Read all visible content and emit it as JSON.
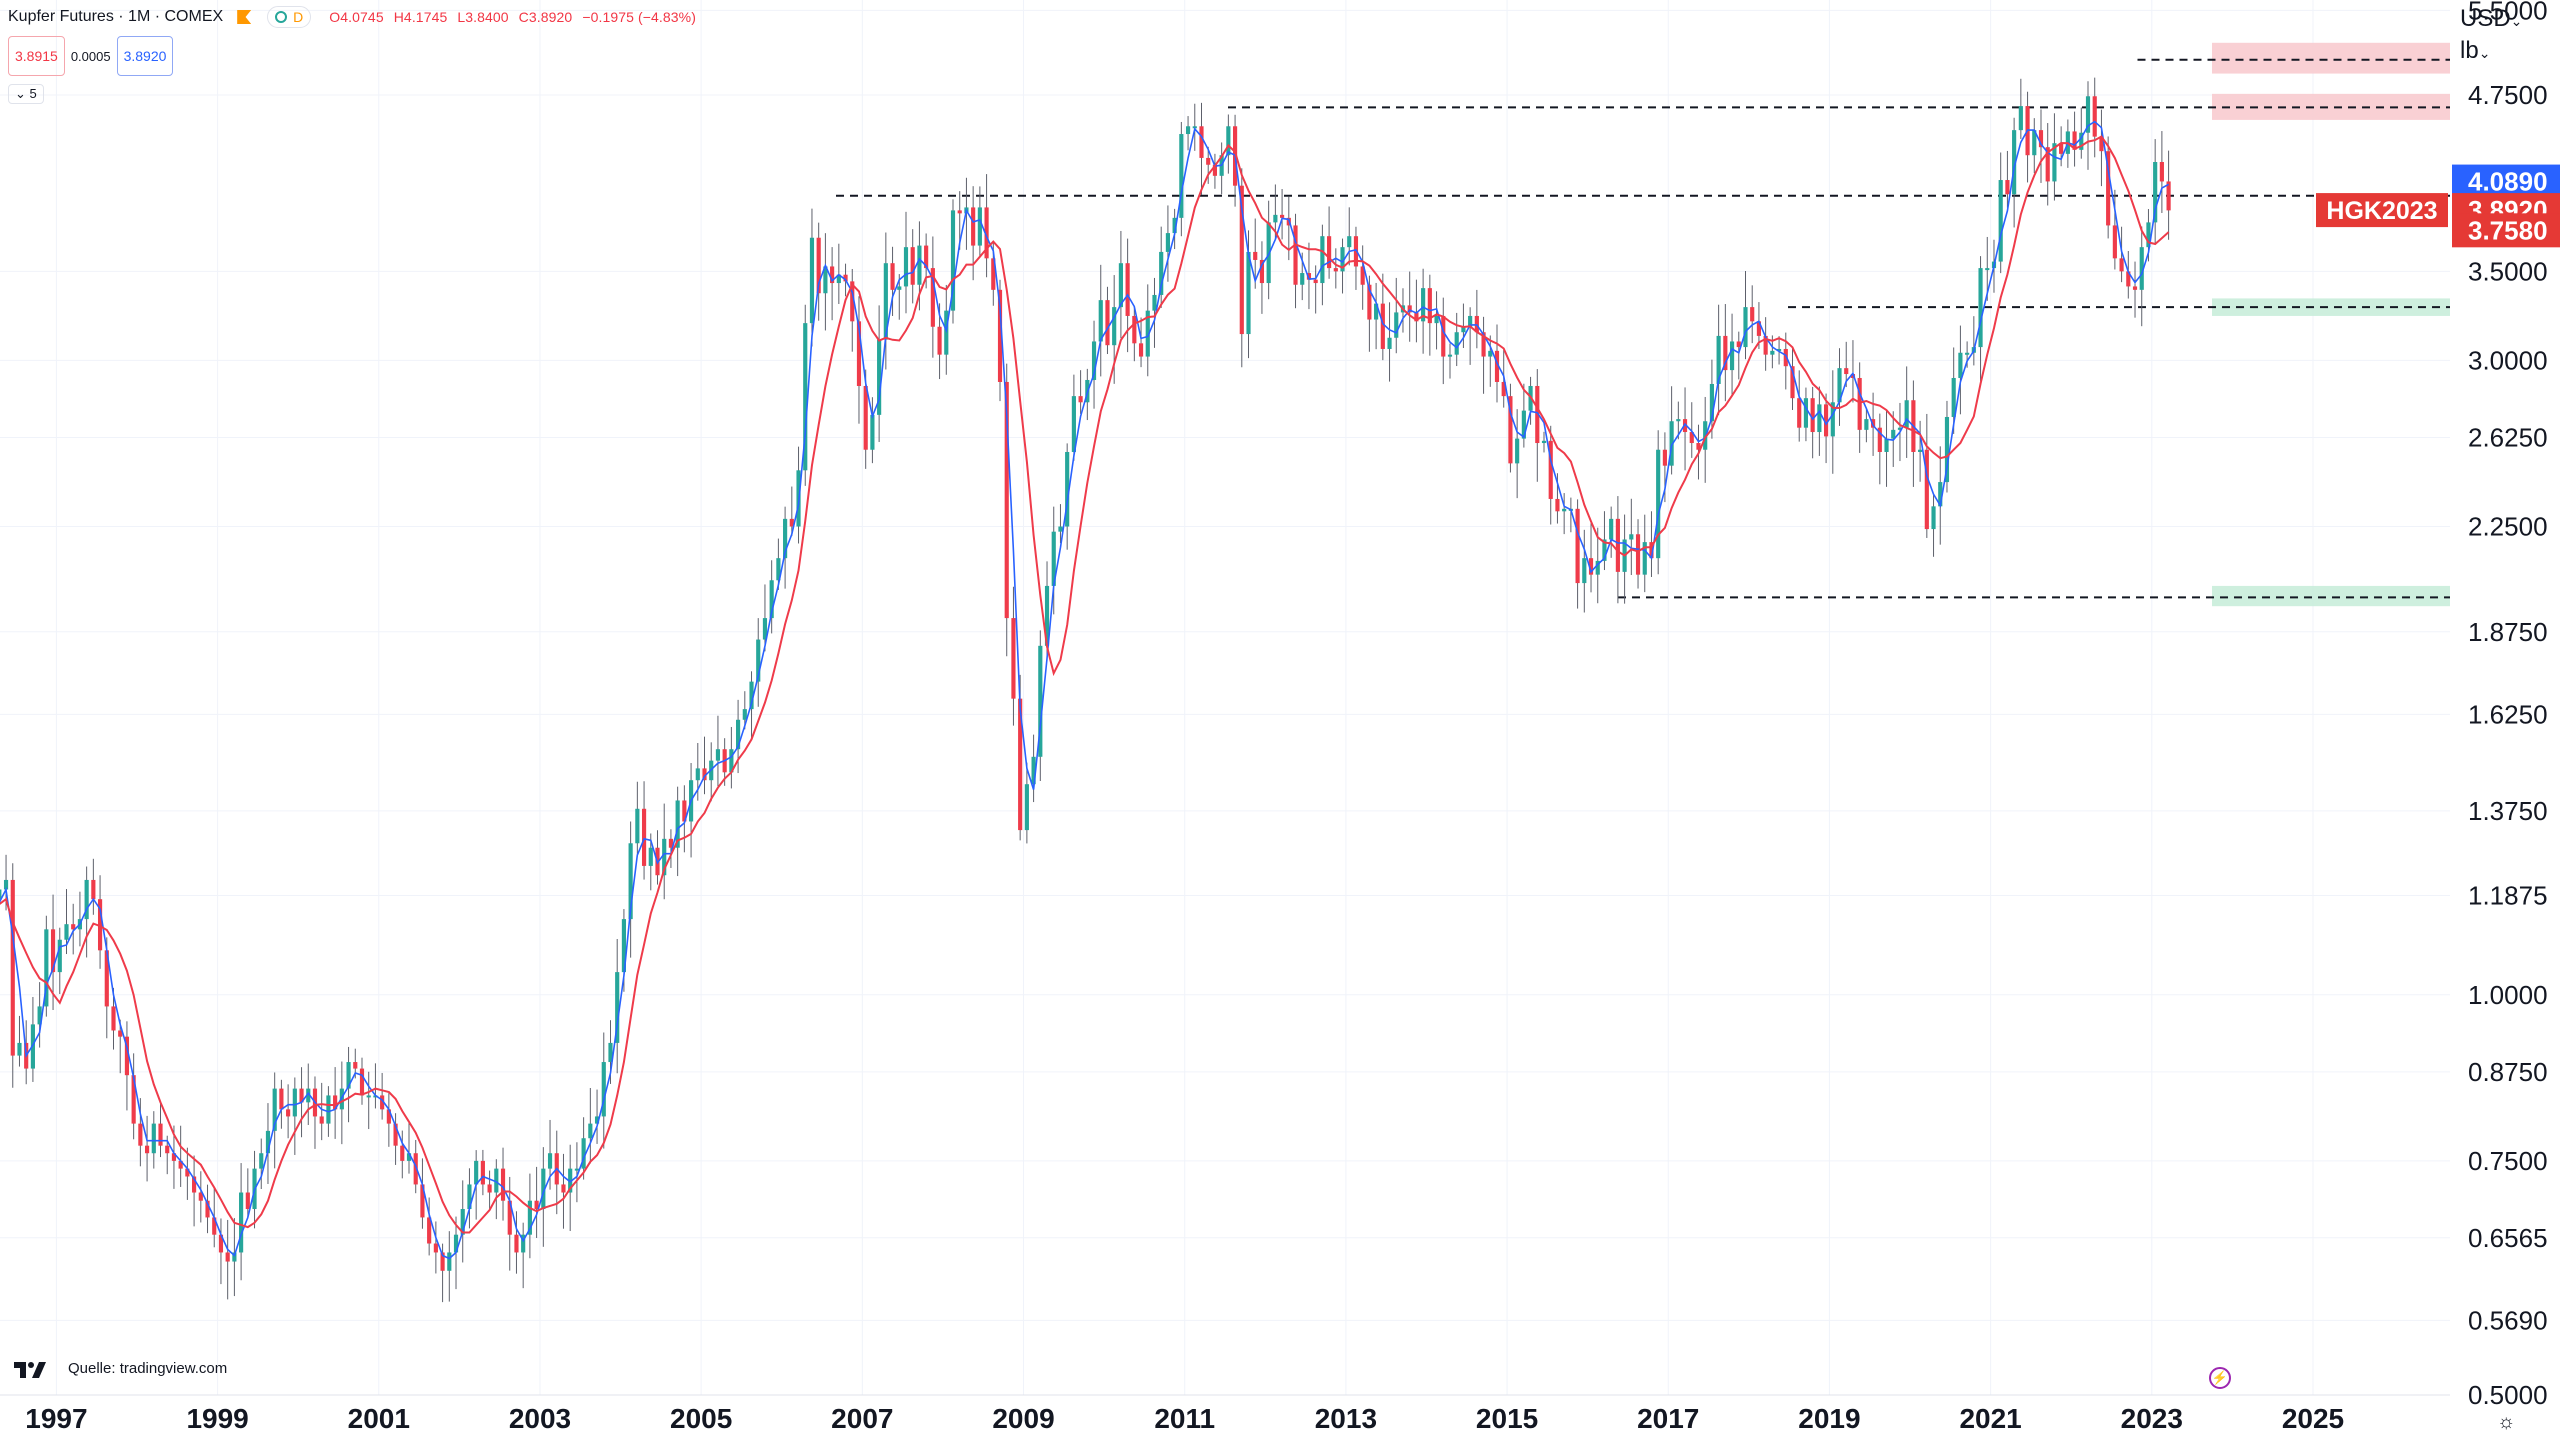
{
  "header": {
    "symbol": "Kupfer Futures · 1M · COMEX",
    "interval_badge": "D",
    "ohlc": {
      "o": "O4.0745",
      "h": "H4.1745",
      "l": "L3.8400",
      "c": "C3.8920",
      "change": "−0.1975 (−4.83%)"
    },
    "sell_price": "3.8915",
    "spread": "0.0005",
    "buy_price": "3.8920",
    "collapse_label": "5"
  },
  "axis_header": {
    "currency": "USD",
    "unit": "lb"
  },
  "source": "Quelle: tradingview.com",
  "colors": {
    "up": "#26a69a",
    "down": "#ef3b4a",
    "ma_fast": "#2962ff",
    "ma_slow": "#ef3b4a",
    "resist_zone": "#f8c8cc",
    "support_zone": "#c6ecd8",
    "last_price": "#e53935",
    "high_tag": "#2962ff"
  },
  "price_tags": [
    {
      "value": "4.0890",
      "kind": "high"
    },
    {
      "value": "3.8920",
      "kind": "last",
      "label": "HGK2023"
    },
    {
      "value": "3.7580",
      "kind": "low"
    }
  ],
  "chart_data": {
    "type": "candlestick",
    "title": "Kupfer Futures",
    "x_axis_labels": [
      "1997",
      "1999",
      "2001",
      "2003",
      "2005",
      "2007",
      "2009",
      "2011",
      "2013",
      "2015",
      "2017",
      "2019",
      "2021",
      "2023",
      "2025"
    ],
    "y_axis_labels": [
      "5.5000",
      "4.7500",
      "3.5000",
      "3.0000",
      "2.6250",
      "2.2500",
      "1.8750",
      "1.6250",
      "1.3750",
      "1.1875",
      "1.0000",
      "0.8750",
      "0.7500",
      "0.6565",
      "0.5690",
      "0.5000"
    ],
    "y_scale": "log",
    "ylim": [
      0.5,
      5.6
    ],
    "xlim": [
      1996.3,
      2026.7
    ],
    "grid": true,
    "approx_monthly_closes_by_year": {
      "1996": [
        1.16,
        1.14,
        1.18,
        1.2,
        1.22,
        0.9,
        0.92,
        0.88,
        0.95,
        0.98,
        1.12,
        1.04
      ],
      "1997": [
        1.1,
        1.13,
        1.12,
        1.14,
        1.22,
        1.18,
        1.08,
        0.98,
        0.94,
        0.93,
        0.87,
        0.8
      ],
      "1998": [
        0.77,
        0.76,
        0.8,
        0.77,
        0.76,
        0.75,
        0.74,
        0.73,
        0.71,
        0.7,
        0.68,
        0.66
      ],
      "1999": [
        0.64,
        0.63,
        0.64,
        0.71,
        0.69,
        0.74,
        0.76,
        0.79,
        0.85,
        0.82,
        0.81,
        0.85
      ],
      "2000": [
        0.83,
        0.85,
        0.81,
        0.8,
        0.84,
        0.82,
        0.85,
        0.89,
        0.88,
        0.84,
        0.84,
        0.84
      ],
      "2001": [
        0.82,
        0.8,
        0.77,
        0.75,
        0.76,
        0.72,
        0.68,
        0.65,
        0.64,
        0.62,
        0.64,
        0.66
      ],
      "2002": [
        0.69,
        0.72,
        0.75,
        0.72,
        0.71,
        0.74,
        0.7,
        0.66,
        0.64,
        0.66,
        0.7,
        0.69
      ],
      "2003": [
        0.74,
        0.76,
        0.72,
        0.71,
        0.74,
        0.74,
        0.78,
        0.8,
        0.81,
        0.89,
        0.92,
        1.04
      ],
      "2004": [
        1.14,
        1.3,
        1.38,
        1.25,
        1.29,
        1.23,
        1.31,
        1.29,
        1.4,
        1.35,
        1.45,
        1.48
      ],
      "2005": [
        1.45,
        1.5,
        1.53,
        1.47,
        1.53,
        1.61,
        1.64,
        1.72,
        1.85,
        1.92,
        2.05,
        2.13
      ],
      "2006": [
        2.28,
        2.25,
        2.48,
        3.2,
        3.71,
        3.37,
        3.53,
        3.43,
        3.48,
        3.44,
        3.21,
        2.87
      ],
      "2007": [
        2.57,
        2.73,
        3.11,
        3.55,
        3.39,
        3.41,
        3.65,
        3.42,
        3.66,
        3.52,
        3.18,
        3.03
      ],
      "2008": [
        3.27,
        3.89,
        3.87,
        3.91,
        3.66,
        3.91,
        3.58,
        3.39,
        2.89,
        1.92,
        1.67,
        1.33
      ],
      "2009": [
        1.44,
        1.51,
        1.83,
        2.03,
        2.23,
        2.25,
        2.56,
        2.82,
        2.79,
        2.9,
        3.1,
        3.33
      ],
      "2010": [
        3.08,
        3.29,
        3.55,
        3.24,
        3.09,
        3.02,
        3.27,
        3.36,
        3.62,
        3.74,
        3.84,
        4.44
      ],
      "2011": [
        4.5,
        4.5,
        4.26,
        4.21,
        4.13,
        4.28,
        4.5,
        4.06,
        3.14,
        3.62,
        3.57,
        3.43
      ],
      "2012": [
        3.81,
        3.86,
        3.84,
        3.79,
        3.42,
        3.49,
        3.45,
        3.43,
        3.72,
        3.52,
        3.5,
        3.65
      ],
      "2013": [
        3.72,
        3.53,
        3.42,
        3.22,
        3.31,
        3.06,
        3.12,
        3.26,
        3.3,
        3.26,
        3.21,
        3.4
      ],
      "2014": [
        3.2,
        3.24,
        3.02,
        3.03,
        3.15,
        3.18,
        3.24,
        3.15,
        3.02,
        3.05,
        2.89,
        2.82
      ],
      "2015": [
        2.51,
        2.62,
        2.75,
        2.87,
        2.6,
        2.61,
        2.36,
        2.31,
        2.32,
        2.32,
        2.04,
        2.13
      ],
      "2016": [
        2.07,
        2.12,
        2.2,
        2.28,
        2.08,
        2.2,
        2.22,
        2.07,
        2.19,
        2.13,
        2.57,
        2.5
      ],
      "2017": [
        2.7,
        2.71,
        2.65,
        2.6,
        2.57,
        2.7,
        2.88,
        3.13,
        2.95,
        3.1,
        3.07,
        3.29
      ],
      "2018": [
        3.21,
        3.13,
        3.03,
        3.05,
        3.06,
        2.97,
        2.81,
        2.67,
        2.81,
        2.65,
        2.78,
        2.63
      ],
      "2019": [
        2.79,
        2.96,
        2.93,
        2.91,
        2.66,
        2.71,
        2.67,
        2.56,
        2.62,
        2.66,
        2.67,
        2.8
      ],
      "2020": [
        2.56,
        2.57,
        2.24,
        2.33,
        2.43,
        2.72,
        2.91,
        3.04,
        3.04,
        3.07,
        3.52,
        3.52
      ],
      "2021": [
        3.56,
        4.1,
        4.0,
        4.47,
        4.66,
        4.28,
        4.47,
        4.34,
        4.09,
        4.37,
        4.29,
        4.46
      ],
      "2022": [
        4.32,
        4.45,
        4.74,
        4.42,
        4.31,
        3.79,
        3.58,
        3.5,
        3.41,
        3.39,
        3.65,
        3.81
      ],
      "2023": [
        4.23,
        4.09,
        3.89
      ]
    },
    "horizontal_levels": [
      "5.0500",
      "4.6500",
      "3.9900",
      "3.2900",
      "1.9900"
    ],
    "moving_averages": [
      "fast (blue)",
      "slow (red)"
    ]
  }
}
